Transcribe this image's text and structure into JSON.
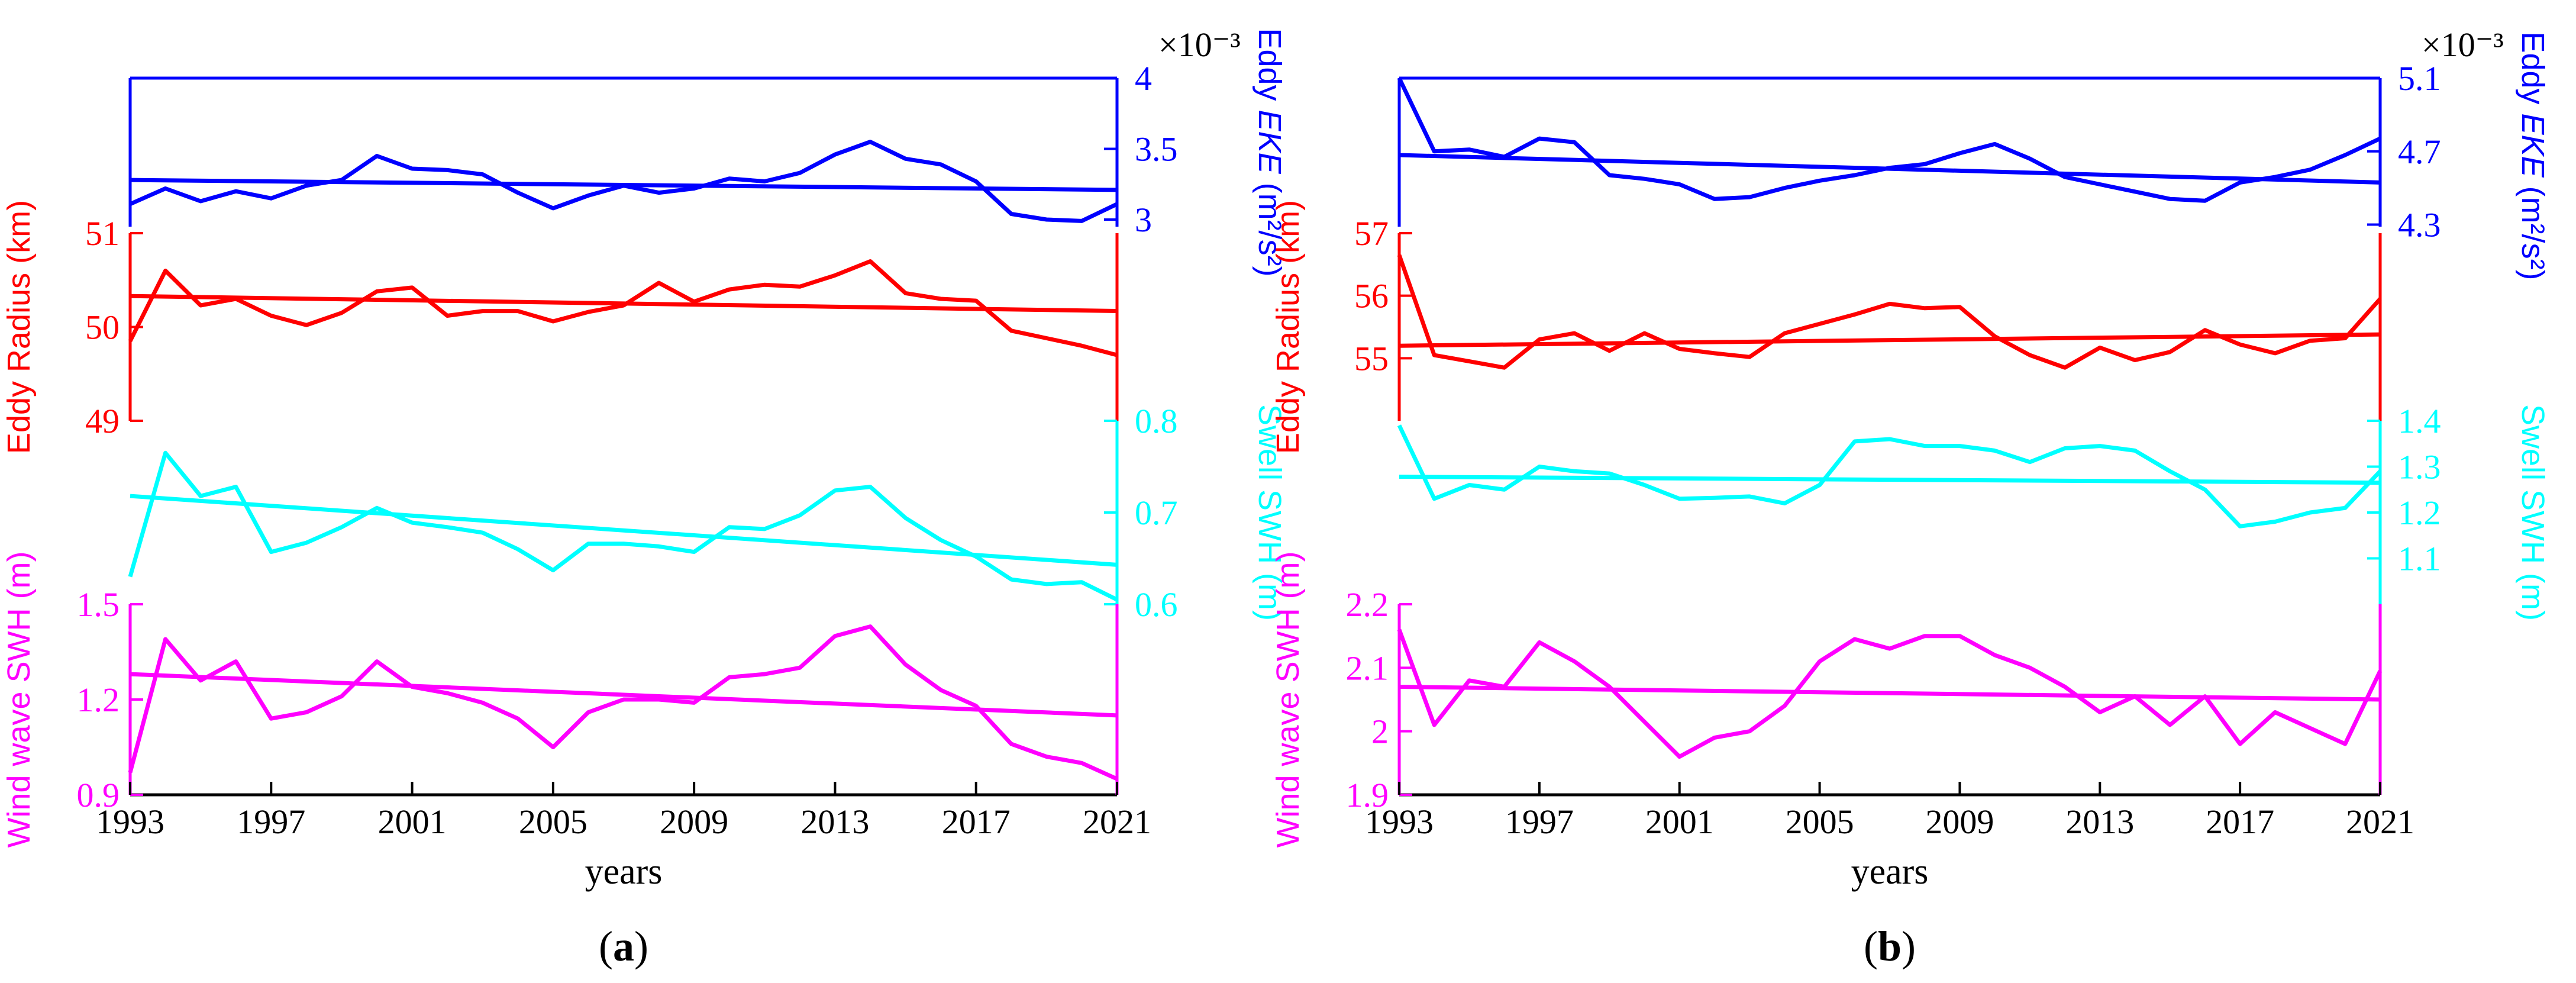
{
  "chart_data": [
    {
      "type": "line",
      "panel_label": "a",
      "xlabel": "years",
      "x_ticks": [
        "1993",
        "1997",
        "2001",
        "2005",
        "2009",
        "2013",
        "2017",
        "2021"
      ],
      "xlim": [
        1993,
        2021
      ],
      "layers": [
        {
          "key": "eke",
          "side": "right",
          "color": "#0000ff",
          "label_plain": "Eddy ",
          "label_italic": "EKE",
          "label_unit": " (m²/s²)",
          "multiplier": "×10⁻³",
          "ylim": [
            2.95,
            4.0
          ],
          "ticks": [
            "3",
            "3.5",
            "4"
          ],
          "tick_values": [
            3.0,
            3.5,
            4.0
          ],
          "years": [
            1993,
            1994,
            1995,
            1996,
            1997,
            1998,
            1999,
            2000,
            2001,
            2002,
            2003,
            2004,
            2005,
            2006,
            2007,
            2008,
            2009,
            2010,
            2011,
            2012,
            2013,
            2014,
            2015,
            2016,
            2017,
            2018,
            2019,
            2020,
            2021
          ],
          "values": [
            3.11,
            3.22,
            3.13,
            3.2,
            3.15,
            3.24,
            3.28,
            3.45,
            3.36,
            3.35,
            3.32,
            3.19,
            3.08,
            3.17,
            3.24,
            3.19,
            3.22,
            3.29,
            3.27,
            3.33,
            3.46,
            3.55,
            3.43,
            3.39,
            3.27,
            3.04,
            3.0,
            2.99,
            3.11
          ],
          "trend": [
            3.28,
            3.21
          ]
        },
        {
          "key": "radius",
          "side": "left",
          "color": "#ff0000",
          "label": "Eddy Radius (km)",
          "ylim": [
            49.0,
            51.0
          ],
          "ticks": [
            "49",
            "50",
            "51"
          ],
          "tick_values": [
            49,
            50,
            51
          ],
          "years": [
            1993,
            1994,
            1995,
            1996,
            1997,
            1998,
            1999,
            2000,
            2001,
            2002,
            2003,
            2004,
            2005,
            2006,
            2007,
            2008,
            2009,
            2010,
            2011,
            2012,
            2013,
            2014,
            2015,
            2016,
            2017,
            2018,
            2019,
            2020,
            2021
          ],
          "values": [
            49.85,
            50.6,
            50.23,
            50.3,
            50.12,
            50.02,
            50.15,
            50.38,
            50.42,
            50.12,
            50.17,
            50.17,
            50.06,
            50.16,
            50.23,
            50.47,
            50.27,
            50.4,
            50.45,
            50.43,
            50.55,
            50.7,
            50.36,
            50.3,
            50.28,
            49.96,
            49.88,
            49.8,
            49.7
          ],
          "trend": [
            50.33,
            50.17
          ]
        },
        {
          "key": "swell",
          "side": "right",
          "color": "#00ffff",
          "label": "Swell SWH (m)",
          "ylim": [
            0.6,
            0.8
          ],
          "ticks": [
            "0.6",
            "0.7",
            "0.8"
          ],
          "tick_values": [
            0.6,
            0.7,
            0.8
          ],
          "years": [
            1993,
            1994,
            1995,
            1996,
            1997,
            1998,
            1999,
            2000,
            2001,
            2002,
            2003,
            2004,
            2005,
            2006,
            2007,
            2008,
            2009,
            2010,
            2011,
            2012,
            2013,
            2014,
            2015,
            2016,
            2017,
            2018,
            2019,
            2020,
            2021
          ],
          "values": [
            0.63,
            0.765,
            0.718,
            0.728,
            0.657,
            0.667,
            0.684,
            0.705,
            0.689,
            0.684,
            0.678,
            0.66,
            0.637,
            0.666,
            0.666,
            0.663,
            0.657,
            0.684,
            0.682,
            0.697,
            0.724,
            0.728,
            0.694,
            0.67,
            0.652,
            0.627,
            0.622,
            0.624,
            0.605
          ],
          "trend": [
            0.718,
            0.643
          ]
        },
        {
          "key": "wind",
          "side": "left",
          "color": "#ff00ff",
          "label": "Wind wave SWH (m)",
          "ylim": [
            0.9,
            1.5
          ],
          "ticks": [
            "0.9",
            "1.2",
            "1.5"
          ],
          "tick_values": [
            0.9,
            1.2,
            1.5
          ],
          "years": [
            1993,
            1994,
            1995,
            1996,
            1997,
            1998,
            1999,
            2000,
            2001,
            2002,
            2003,
            2004,
            2005,
            2006,
            2007,
            2008,
            2009,
            2010,
            2011,
            2012,
            2013,
            2014,
            2015,
            2016,
            2017,
            2018,
            2019,
            2020,
            2021
          ],
          "values": [
            0.97,
            1.39,
            1.26,
            1.32,
            1.14,
            1.16,
            1.21,
            1.32,
            1.24,
            1.22,
            1.19,
            1.14,
            1.05,
            1.16,
            1.2,
            1.2,
            1.19,
            1.27,
            1.28,
            1.3,
            1.4,
            1.43,
            1.31,
            1.23,
            1.18,
            1.06,
            1.02,
            1.0,
            0.95
          ],
          "trend": [
            1.28,
            1.15
          ]
        }
      ]
    },
    {
      "type": "line",
      "panel_label": "b",
      "xlabel": "years",
      "x_ticks": [
        "1993",
        "1997",
        "2001",
        "2005",
        "2009",
        "2013",
        "2017",
        "2021"
      ],
      "xlim": [
        1993,
        2021
      ],
      "layers": [
        {
          "key": "eke",
          "side": "right",
          "color": "#0000ff",
          "label_plain": "Eddy ",
          "label_italic": "EKE",
          "label_unit": " (m²/s²)",
          "multiplier": "×10⁻³",
          "ylim": [
            4.25,
            5.1
          ],
          "ticks": [
            "4.3",
            "4.7",
            "5.1"
          ],
          "tick_values": [
            4.3,
            4.7,
            5.1
          ],
          "years": [
            1993,
            1994,
            1995,
            1996,
            1997,
            1998,
            1999,
            2000,
            2001,
            2002,
            2003,
            2004,
            2005,
            2006,
            2007,
            2008,
            2009,
            2010,
            2011,
            2012,
            2013,
            2014,
            2015,
            2016,
            2017,
            2018,
            2019,
            2020,
            2021
          ],
          "values": [
            5.1,
            4.7,
            4.71,
            4.67,
            4.77,
            4.75,
            4.57,
            4.55,
            4.52,
            4.44,
            4.45,
            4.5,
            4.54,
            4.57,
            4.61,
            4.63,
            4.69,
            4.74,
            4.66,
            4.56,
            4.52,
            4.48,
            4.44,
            4.43,
            4.53,
            4.56,
            4.6,
            4.68,
            4.77
          ],
          "trend": [
            4.68,
            4.53
          ]
        },
        {
          "key": "radius",
          "side": "left",
          "color": "#ff0000",
          "label": "Eddy Radius (km)",
          "ylim": [
            54.0,
            57.0
          ],
          "ticks": [
            "55",
            "56",
            "57"
          ],
          "tick_values": [
            55,
            56,
            57
          ],
          "years": [
            1993,
            1994,
            1995,
            1996,
            1997,
            1998,
            1999,
            2000,
            2001,
            2002,
            2003,
            2004,
            2005,
            2006,
            2007,
            2008,
            2009,
            2010,
            2011,
            2012,
            2013,
            2014,
            2015,
            2016,
            2017,
            2018,
            2019,
            2020,
            2021
          ],
          "values": [
            56.65,
            55.05,
            54.95,
            54.85,
            55.3,
            55.4,
            55.12,
            55.4,
            55.15,
            55.08,
            55.02,
            55.4,
            55.55,
            55.7,
            55.87,
            55.8,
            55.82,
            55.35,
            55.05,
            54.85,
            55.17,
            54.97,
            55.1,
            55.45,
            55.22,
            55.08,
            55.28,
            55.32,
            55.95
          ],
          "trend": [
            55.2,
            55.38
          ]
        },
        {
          "key": "swell",
          "side": "right",
          "color": "#00ffff",
          "label": "Swell SWH (m)",
          "ylim": [
            1.0,
            1.4
          ],
          "ticks": [
            "1.1",
            "1.2",
            "1.3",
            "1.4"
          ],
          "tick_values": [
            1.1,
            1.2,
            1.3,
            1.4
          ],
          "years": [
            1993,
            1994,
            1995,
            1996,
            1997,
            1998,
            1999,
            2000,
            2001,
            2002,
            2003,
            2004,
            2005,
            2006,
            2007,
            2008,
            2009,
            2010,
            2011,
            2012,
            2013,
            2014,
            2015,
            2016,
            2017,
            2018,
            2019,
            2020,
            2021
          ],
          "values": [
            1.39,
            1.23,
            1.26,
            1.25,
            1.3,
            1.29,
            1.285,
            1.26,
            1.23,
            1.232,
            1.235,
            1.22,
            1.26,
            1.355,
            1.36,
            1.345,
            1.345,
            1.335,
            1.31,
            1.34,
            1.345,
            1.335,
            1.29,
            1.25,
            1.17,
            1.18,
            1.2,
            1.21,
            1.29
          ],
          "trend": [
            1.278,
            1.265
          ]
        },
        {
          "key": "wind",
          "side": "left",
          "color": "#ff00ff",
          "label": "Wind wave SWH (m)",
          "ylim": [
            1.9,
            2.2
          ],
          "ticks": [
            "1.9",
            "2",
            "2.1",
            "2.2"
          ],
          "tick_values": [
            1.9,
            2.0,
            2.1,
            2.2
          ],
          "years": [
            1993,
            1994,
            1995,
            1996,
            1997,
            1998,
            1999,
            2000,
            2001,
            2002,
            2003,
            2004,
            2005,
            2006,
            2007,
            2008,
            2009,
            2010,
            2011,
            2012,
            2013,
            2014,
            2015,
            2016,
            2017,
            2018,
            2019,
            2020,
            2021
          ],
          "values": [
            2.16,
            2.01,
            2.08,
            2.07,
            2.14,
            2.11,
            2.07,
            2.015,
            1.96,
            1.99,
            2.0,
            2.04,
            2.11,
            2.145,
            2.13,
            2.15,
            2.15,
            2.12,
            2.1,
            2.07,
            2.03,
            2.055,
            2.01,
            2.055,
            1.98,
            2.03,
            2.005,
            1.98,
            2.095
          ],
          "trend": [
            2.07,
            2.05
          ]
        }
      ]
    }
  ]
}
